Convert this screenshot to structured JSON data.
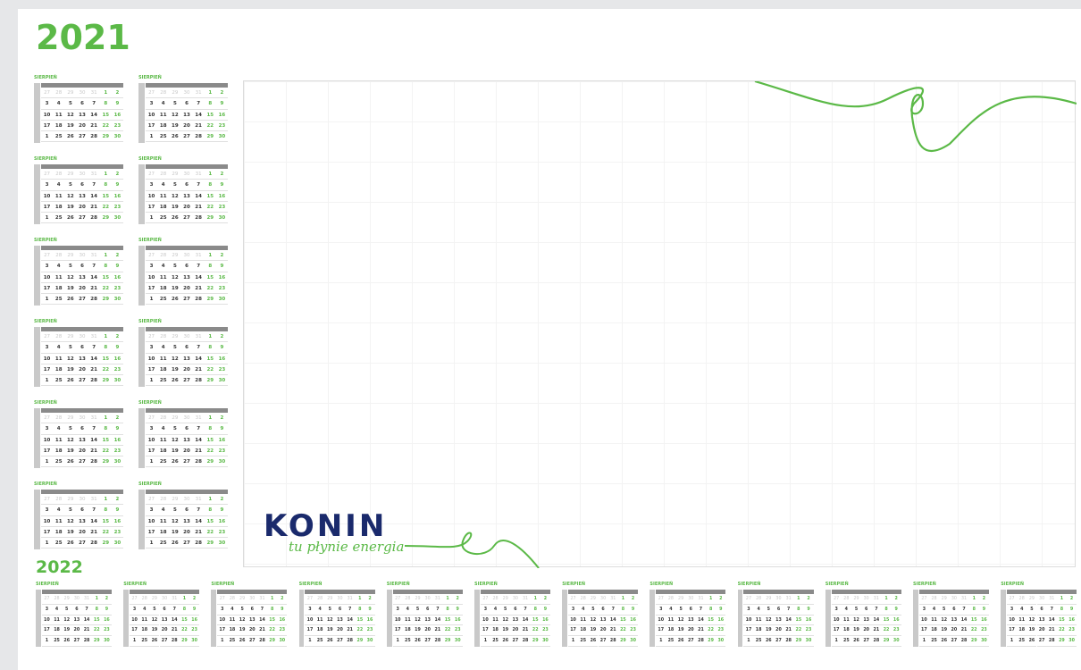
{
  "header": {
    "year": "2021"
  },
  "calendars_2021": [
    {
      "month": "SIERPIEŃ"
    },
    {
      "month": "SIERPIEŃ"
    },
    {
      "month": "SIERPIEŃ"
    },
    {
      "month": "SIERPIEŃ"
    },
    {
      "month": "SIERPIEŃ"
    },
    {
      "month": "SIERPIEŃ"
    },
    {
      "month": "SIERPIEŃ"
    },
    {
      "month": "SIERPIEŃ"
    },
    {
      "month": "SIERPIEŃ"
    },
    {
      "month": "SIERPIEŃ"
    },
    {
      "month": "SIERPIEŃ"
    },
    {
      "month": "SIERPIEŃ"
    }
  ],
  "year_2022": "2022",
  "calendars_2022": [
    {
      "month": "SIERPIEŃ"
    },
    {
      "month": "SIERPIEŃ"
    },
    {
      "month": "SIERPIEŃ"
    },
    {
      "month": "SIERPIEŃ"
    },
    {
      "month": "SIERPIEŃ"
    },
    {
      "month": "SIERPIEŃ"
    },
    {
      "month": "SIERPIEŃ"
    },
    {
      "month": "SIERPIEŃ"
    },
    {
      "month": "SIERPIEŃ"
    },
    {
      "month": "SIERPIEŃ"
    },
    {
      "month": "SIERPIEŃ"
    },
    {
      "month": "SIERPIEŃ"
    }
  ],
  "month_template": {
    "weeks": [
      [
        "27",
        "28",
        "29",
        "30",
        "31",
        "1",
        "2"
      ],
      [
        "3",
        "4",
        "5",
        "6",
        "7",
        "8",
        "9"
      ],
      [
        "10",
        "11",
        "12",
        "13",
        "14",
        "15",
        "16"
      ],
      [
        "17",
        "18",
        "19",
        "20",
        "21",
        "22",
        "23"
      ],
      [
        "1",
        "25",
        "26",
        "27",
        "28",
        "29",
        "30"
      ]
    ]
  },
  "logo": {
    "name": "KONIN",
    "tagline": "tu płynie energia"
  }
}
